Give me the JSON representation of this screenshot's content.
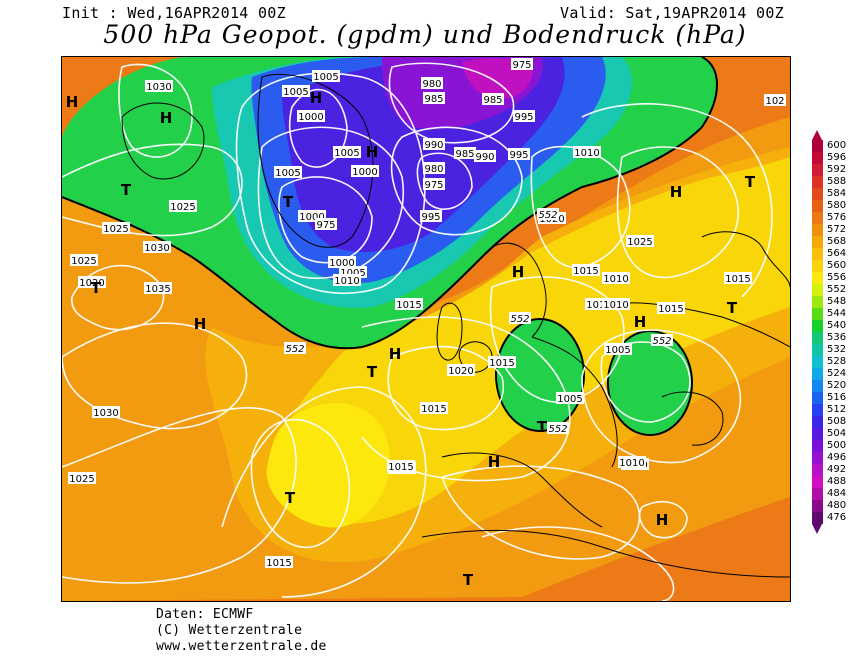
{
  "header": {
    "init": "Init : Wed,16APR2014 00Z",
    "valid": "Valid: Sat,19APR2014 00Z",
    "title": "500 hPa Geopot. (gpdm) und Bodendruck (hPa)"
  },
  "footer": {
    "line1": "Daten: ECMWF",
    "line2": "(C) Wetterzentrale",
    "line3": "www.wetterzentrale.de"
  },
  "legend": {
    "labels": [
      "600",
      "596",
      "592",
      "588",
      "584",
      "580",
      "576",
      "572",
      "568",
      "564",
      "560",
      "556",
      "552",
      "548",
      "544",
      "540",
      "536",
      "532",
      "528",
      "524",
      "520",
      "516",
      "512",
      "508",
      "504",
      "500",
      "496",
      "492",
      "488",
      "484",
      "480",
      "476"
    ],
    "colors": [
      "#b0003a",
      "#c40838",
      "#d21c35",
      "#de3224",
      "#e24a1a",
      "#e65f13",
      "#ec7813",
      "#f0900e",
      "#f5a80b",
      "#f8be0a",
      "#fad30a",
      "#fce80c",
      "#d4f00d",
      "#a0e812",
      "#58dc16",
      "#18d02a",
      "#14c878",
      "#10c4a8",
      "#10c0d0",
      "#10a8e8",
      "#1488f0",
      "#1c64f0",
      "#2840f0",
      "#3c26e8",
      "#5a18e0",
      "#7810d8",
      "#9810d0",
      "#b812c8",
      "#d010c0",
      "#b00ea8",
      "#8a0a8a",
      "#600a70"
    ]
  },
  "map": {
    "pressure_labels": [
      "1030",
      "1005",
      "1005",
      "1000",
      "1005",
      "1005",
      "1000",
      "1025",
      "1025",
      "1025",
      "1030",
      "1020",
      "1035",
      "995",
      "990",
      "1000",
      "1005",
      "1010",
      "980",
      "985",
      "990",
      "985",
      "980",
      "995",
      "1010",
      "1020",
      "1015",
      "1020",
      "1015",
      "1010",
      "1015",
      "1020",
      "1005",
      "1015",
      "1010",
      "1005",
      "1010",
      "1030",
      "1025",
      "1015",
      "1015",
      "1015",
      "1010",
      "1015",
      "1015",
      "1015",
      "102",
      "995",
      "985",
      "1000",
      "1025"
    ],
    "center_labels": [
      "H",
      "H",
      "T",
      "T",
      "H",
      "H",
      "T",
      "H",
      "H",
      "H",
      "T",
      "T",
      "H",
      "T",
      "H",
      "H",
      "T",
      "T",
      "H",
      "T"
    ],
    "geopot_labels": [
      "552",
      "552",
      "552",
      "552",
      "552"
    ],
    "low_labels": [
      "975",
      "975",
      "975"
    ]
  }
}
